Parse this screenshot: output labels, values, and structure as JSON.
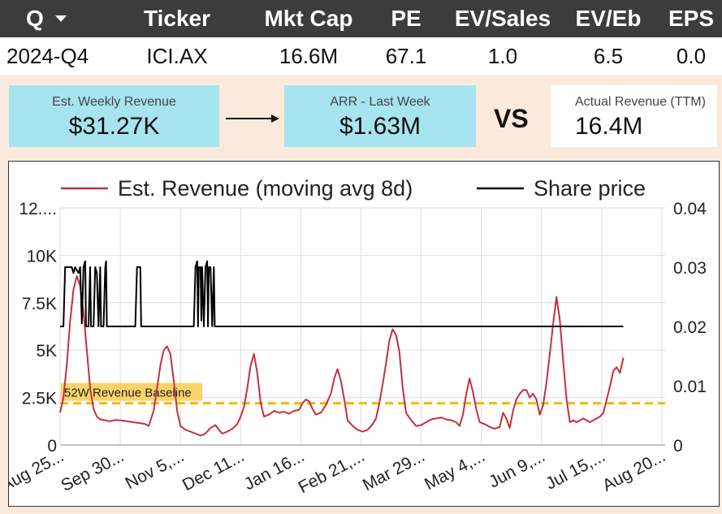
{
  "header": {
    "period_label": "Q",
    "columns": [
      "Ticker",
      "Mkt Cap",
      "PE",
      "EV/Sales",
      "EV/Eb",
      "EPS"
    ]
  },
  "row": {
    "period": "2024-Q4",
    "ticker": "ICI.AX",
    "mkt_cap": "16.6M",
    "pe": "67.1",
    "ev_sales": "1.0",
    "ev_eb": "6.5",
    "eps": "0.0"
  },
  "kpis": {
    "weekly_label": "Est. Weekly Revenue",
    "weekly_value": "$31.27K",
    "arr_label": "ARR - Last Week",
    "arr_value": "$1.63M",
    "vs_label": "VS",
    "actual_label": "Actual Revenue (TTM)",
    "actual_value": "16.4M"
  },
  "colors": {
    "header_bg": "#3c3c3c",
    "page_bg": "#fbeadb",
    "kpi_blue": "#a6e4ef",
    "revenue_line": "#c0323e",
    "price_line": "#000000",
    "baseline": "#f5b800"
  },
  "chart_data": {
    "type": "line",
    "legend": [
      "Est. Revenue (moving avg 8d)",
      "Share price"
    ],
    "y_left_ticks": [
      "0",
      "2.5K",
      "5K",
      "7.5K",
      "10K",
      "12...."
    ],
    "y_left_tick_values": [
      0,
      2500,
      5000,
      7500,
      10000,
      12500
    ],
    "y_left_range": [
      0,
      12500
    ],
    "y_right_ticks": [
      "0",
      "0.01",
      "0.02",
      "0.03",
      "0.04"
    ],
    "y_right_tick_values": [
      0,
      0.01,
      0.02,
      0.03,
      0.04
    ],
    "y_right_range": [
      0,
      0.04
    ],
    "x_range": [
      0,
      362
    ],
    "x_ticks": [
      "Aug 25...",
      "Sep 30...",
      "Nov 5,...",
      "Dec 11...",
      "Jan 16...",
      "Feb 21,...",
      "Mar 29...",
      "May 4,...",
      "Jun 9,...",
      "Jul 15,...",
      "Aug 20..."
    ],
    "x_tick_days": [
      0,
      36,
      72,
      108,
      144,
      180,
      216,
      252,
      288,
      324,
      360
    ],
    "annotation": {
      "text": "52W Revenue Baseline",
      "value": 2200
    },
    "series": [
      {
        "name": "Est. Revenue (moving avg 8d)",
        "points": [
          [
            0,
            1700
          ],
          [
            2,
            2500
          ],
          [
            4,
            4200
          ],
          [
            6,
            6500
          ],
          [
            8,
            8200
          ],
          [
            10,
            8900
          ],
          [
            12,
            8400
          ],
          [
            14,
            7000
          ],
          [
            16,
            5000
          ],
          [
            18,
            3000
          ],
          [
            20,
            1900
          ],
          [
            22,
            1500
          ],
          [
            24,
            1350
          ],
          [
            27,
            1300
          ],
          [
            30,
            1250
          ],
          [
            33,
            1320
          ],
          [
            36,
            1300
          ],
          [
            40,
            1250
          ],
          [
            44,
            1200
          ],
          [
            48,
            1150
          ],
          [
            51,
            1100
          ],
          [
            53,
            1000
          ],
          [
            56,
            1800
          ],
          [
            58,
            3000
          ],
          [
            60,
            4200
          ],
          [
            62,
            5000
          ],
          [
            64,
            5200
          ],
          [
            66,
            4800
          ],
          [
            68,
            3400
          ],
          [
            70,
            1800
          ],
          [
            72,
            1000
          ],
          [
            75,
            800
          ],
          [
            78,
            700
          ],
          [
            81,
            600
          ],
          [
            84,
            500
          ],
          [
            86,
            550
          ],
          [
            88,
            700
          ],
          [
            90,
            900
          ],
          [
            93,
            1050
          ],
          [
            95,
            800
          ],
          [
            97,
            600
          ],
          [
            100,
            700
          ],
          [
            103,
            850
          ],
          [
            106,
            1100
          ],
          [
            108,
            1500
          ],
          [
            110,
            2000
          ],
          [
            112,
            3000
          ],
          [
            114,
            4200
          ],
          [
            116,
            4800
          ],
          [
            118,
            3800
          ],
          [
            120,
            2200
          ],
          [
            122,
            1500
          ],
          [
            125,
            1600
          ],
          [
            128,
            1800
          ],
          [
            131,
            1700
          ],
          [
            134,
            1750
          ],
          [
            137,
            1650
          ],
          [
            140,
            1800
          ],
          [
            143,
            1850
          ],
          [
            145,
            2200
          ],
          [
            147,
            2400
          ],
          [
            149,
            2300
          ],
          [
            151,
            1900
          ],
          [
            153,
            1600
          ],
          [
            156,
            1700
          ],
          [
            159,
            2100
          ],
          [
            162,
            2700
          ],
          [
            164,
            3500
          ],
          [
            166,
            4000
          ],
          [
            168,
            3400
          ],
          [
            170,
            2400
          ],
          [
            172,
            1300
          ],
          [
            175,
            1000
          ],
          [
            178,
            800
          ],
          [
            181,
            700
          ],
          [
            184,
            800
          ],
          [
            187,
            1100
          ],
          [
            189,
            1400
          ],
          [
            191,
            2200
          ],
          [
            193,
            3200
          ],
          [
            195,
            4300
          ],
          [
            197,
            5500
          ],
          [
            199,
            6100
          ],
          [
            201,
            5800
          ],
          [
            203,
            4900
          ],
          [
            205,
            3000
          ],
          [
            207,
            1700
          ],
          [
            210,
            1300
          ],
          [
            213,
            1000
          ],
          [
            216,
            1050
          ],
          [
            219,
            1200
          ],
          [
            222,
            1350
          ],
          [
            225,
            1400
          ],
          [
            228,
            1450
          ],
          [
            231,
            1350
          ],
          [
            234,
            1300
          ],
          [
            237,
            1200
          ],
          [
            239,
            1000
          ],
          [
            241,
            1600
          ],
          [
            243,
            2700
          ],
          [
            245,
            3500
          ],
          [
            247,
            2800
          ],
          [
            249,
            1900
          ],
          [
            251,
            1200
          ],
          [
            254,
            1100
          ],
          [
            257,
            950
          ],
          [
            260,
            850
          ],
          [
            263,
            950
          ],
          [
            265,
            1700
          ],
          [
            267,
            1400
          ],
          [
            269,
            900
          ],
          [
            271,
            1800
          ],
          [
            273,
            2400
          ],
          [
            275,
            2700
          ],
          [
            277,
            2900
          ],
          [
            279,
            2900
          ],
          [
            281,
            2500
          ],
          [
            283,
            2700
          ],
          [
            285,
            2400
          ],
          [
            287,
            1600
          ],
          [
            289,
            2100
          ],
          [
            291,
            3300
          ],
          [
            293,
            4800
          ],
          [
            295,
            6400
          ],
          [
            297,
            7800
          ],
          [
            299,
            6600
          ],
          [
            301,
            4400
          ],
          [
            303,
            2400
          ],
          [
            305,
            1200
          ],
          [
            307,
            1300
          ],
          [
            309,
            1200
          ],
          [
            311,
            1300
          ],
          [
            313,
            1400
          ],
          [
            315,
            1300
          ],
          [
            317,
            1200
          ],
          [
            319,
            1300
          ],
          [
            321,
            1400
          ],
          [
            323,
            1500
          ],
          [
            325,
            1700
          ],
          [
            327,
            2400
          ],
          [
            329,
            3100
          ],
          [
            331,
            3900
          ],
          [
            333,
            4100
          ],
          [
            335,
            3800
          ],
          [
            337,
            4600
          ]
        ]
      },
      {
        "name": "Share price",
        "points": [
          [
            0,
            0.02
          ],
          [
            2,
            0.02
          ],
          [
            3,
            0.03
          ],
          [
            5,
            0.03
          ],
          [
            7,
            0.03
          ],
          [
            8,
            0.029
          ],
          [
            9,
            0.03
          ],
          [
            11,
            0.029
          ],
          [
            12,
            0.03
          ],
          [
            13,
            0.0205
          ],
          [
            14,
            0.03
          ],
          [
            15,
            0.031
          ],
          [
            15.5,
            0.02
          ],
          [
            17,
            0.02
          ],
          [
            18,
            0.03
          ],
          [
            18.5,
            0.02
          ],
          [
            20,
            0.02
          ],
          [
            21,
            0.03
          ],
          [
            22,
            0.029
          ],
          [
            23,
            0.02
          ],
          [
            24,
            0.03
          ],
          [
            24.5,
            0.02
          ],
          [
            26,
            0.02
          ],
          [
            27,
            0.03
          ],
          [
            27.5,
            0.031
          ],
          [
            28,
            0.02
          ],
          [
            30,
            0.02
          ],
          [
            45,
            0.02
          ],
          [
            46,
            0.03
          ],
          [
            48,
            0.03
          ],
          [
            48.5,
            0.02
          ],
          [
            50,
            0.02
          ],
          [
            80,
            0.02
          ],
          [
            81,
            0.03
          ],
          [
            82,
            0.031
          ],
          [
            82.5,
            0.02
          ],
          [
            83,
            0.03
          ],
          [
            84,
            0.03
          ],
          [
            84.5,
            0.021
          ],
          [
            85,
            0.03
          ],
          [
            86,
            0.02
          ],
          [
            87,
            0.03
          ],
          [
            88,
            0.031
          ],
          [
            88.5,
            0.02
          ],
          [
            89,
            0.03
          ],
          [
            90,
            0.03
          ],
          [
            91,
            0.02
          ],
          [
            92,
            0.03
          ],
          [
            92.5,
            0.02
          ],
          [
            94,
            0.02
          ],
          [
            335,
            0.02
          ],
          [
            337,
            0.02
          ]
        ]
      }
    ]
  }
}
